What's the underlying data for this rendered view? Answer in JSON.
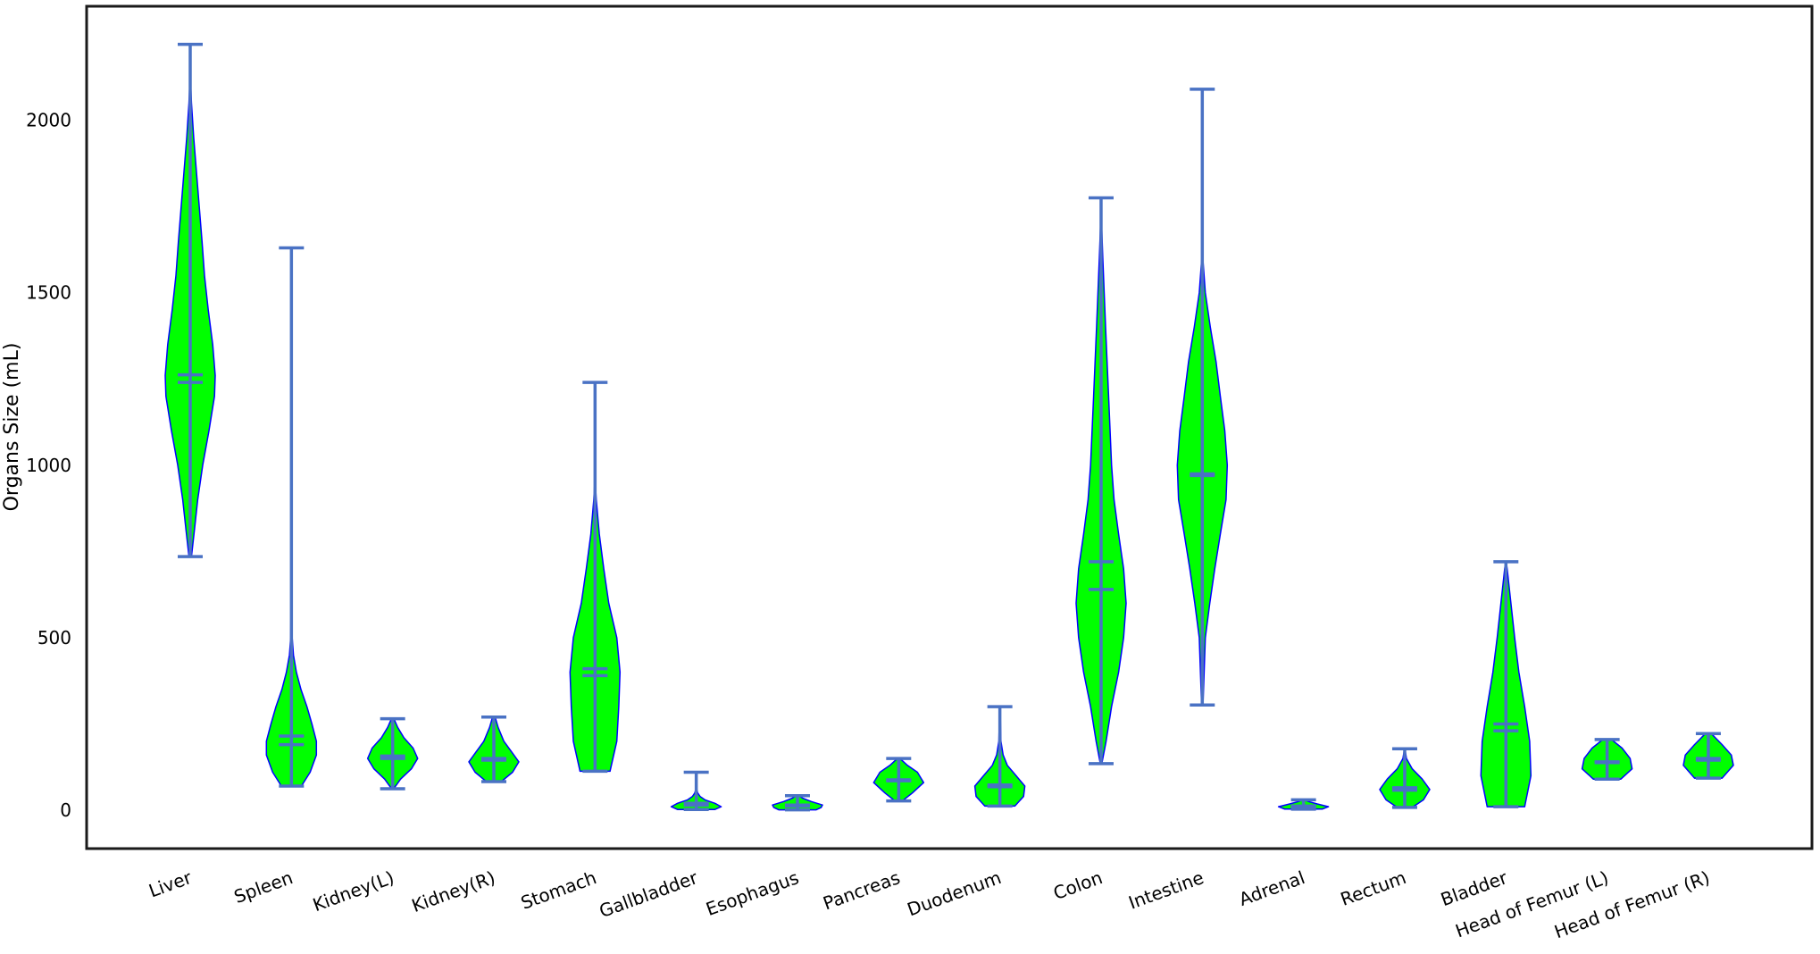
{
  "chart_data": {
    "type": "violin",
    "title": "",
    "xlabel": "",
    "ylabel": "Organs Size (mL)",
    "ylim": [
      -110,
      2340
    ],
    "yticks": [
      0,
      500,
      1000,
      1500,
      2000
    ],
    "grid": false,
    "colors": {
      "fill": "#00ff00",
      "edge": "#0000ff",
      "stats": "#4a72c4",
      "frame": "#1a1a1a"
    },
    "series": [
      {
        "name": "Liver",
        "min": 735,
        "max": 2220,
        "mean": 1262,
        "median": 1240,
        "density": [
          [
            735,
            0.05
          ],
          [
            800,
            0.15
          ],
          [
            900,
            0.3
          ],
          [
            1000,
            0.5
          ],
          [
            1100,
            0.75
          ],
          [
            1200,
            0.97
          ],
          [
            1260,
            1.0
          ],
          [
            1350,
            0.9
          ],
          [
            1450,
            0.72
          ],
          [
            1550,
            0.57
          ],
          [
            1650,
            0.47
          ],
          [
            1750,
            0.36
          ],
          [
            1850,
            0.25
          ],
          [
            1950,
            0.14
          ],
          [
            2050,
            0.05
          ],
          [
            2100,
            0.02
          ],
          [
            2220,
            0.005
          ]
        ]
      },
      {
        "name": "Spleen",
        "min": 70,
        "max": 1630,
        "mean": 215,
        "median": 190,
        "density": [
          [
            70,
            0.4
          ],
          [
            110,
            0.75
          ],
          [
            160,
            1.0
          ],
          [
            200,
            1.0
          ],
          [
            250,
            0.82
          ],
          [
            300,
            0.62
          ],
          [
            350,
            0.38
          ],
          [
            400,
            0.2
          ],
          [
            450,
            0.08
          ],
          [
            500,
            0.03
          ],
          [
            600,
            0.012
          ],
          [
            900,
            0.006
          ],
          [
            1630,
            0.004
          ]
        ]
      },
      {
        "name": "Kidney(L)",
        "min": 62,
        "max": 265,
        "mean": 157,
        "median": 150,
        "density": [
          [
            62,
            0.04
          ],
          [
            90,
            0.32
          ],
          [
            120,
            0.75
          ],
          [
            150,
            1.0
          ],
          [
            180,
            0.82
          ],
          [
            210,
            0.45
          ],
          [
            240,
            0.2
          ],
          [
            265,
            0.05
          ]
        ]
      },
      {
        "name": "Kidney(R)",
        "min": 83,
        "max": 270,
        "mean": 150,
        "median": 145,
        "density": [
          [
            83,
            0.3
          ],
          [
            110,
            0.75
          ],
          [
            140,
            1.0
          ],
          [
            170,
            0.7
          ],
          [
            200,
            0.4
          ],
          [
            240,
            0.17
          ],
          [
            270,
            0.05
          ]
        ]
      },
      {
        "name": "Stomach",
        "min": 113,
        "max": 1240,
        "mean": 410,
        "median": 390,
        "density": [
          [
            113,
            0.6
          ],
          [
            200,
            0.87
          ],
          [
            300,
            0.95
          ],
          [
            400,
            1.0
          ],
          [
            500,
            0.87
          ],
          [
            600,
            0.55
          ],
          [
            700,
            0.35
          ],
          [
            800,
            0.17
          ],
          [
            900,
            0.05
          ],
          [
            950,
            0.01
          ],
          [
            1240,
            0.004
          ]
        ]
      },
      {
        "name": "Gallbladder",
        "min": 2,
        "max": 110,
        "mean": 20,
        "median": 15,
        "density": [
          [
            2,
            0.75
          ],
          [
            10,
            1.0
          ],
          [
            20,
            0.75
          ],
          [
            30,
            0.35
          ],
          [
            40,
            0.15
          ],
          [
            50,
            0.06
          ],
          [
            60,
            0.02
          ],
          [
            110,
            0.005
          ]
        ]
      },
      {
        "name": "Esophagus",
        "min": 1,
        "max": 42,
        "mean": 15,
        "median": 12,
        "density": [
          [
            1,
            0.75
          ],
          [
            8,
            0.95
          ],
          [
            15,
            1.0
          ],
          [
            25,
            0.55
          ],
          [
            35,
            0.2
          ],
          [
            42,
            0.05
          ]
        ]
      },
      {
        "name": "Pancreas",
        "min": 27,
        "max": 150,
        "mean": 88,
        "median": 85,
        "density": [
          [
            27,
            0.15
          ],
          [
            50,
            0.55
          ],
          [
            80,
            1.0
          ],
          [
            110,
            0.75
          ],
          [
            130,
            0.35
          ],
          [
            150,
            0.05
          ]
        ]
      },
      {
        "name": "Duodenum",
        "min": 12,
        "max": 300,
        "mean": 73,
        "median": 68,
        "density": [
          [
            12,
            0.6
          ],
          [
            40,
            0.95
          ],
          [
            70,
            1.0
          ],
          [
            100,
            0.65
          ],
          [
            130,
            0.3
          ],
          [
            160,
            0.13
          ],
          [
            200,
            0.04
          ],
          [
            300,
            0.01
          ]
        ]
      },
      {
        "name": "Colon",
        "min": 135,
        "max": 1775,
        "mean": 720,
        "median": 640,
        "density": [
          [
            135,
            0.03
          ],
          [
            200,
            0.2
          ],
          [
            300,
            0.42
          ],
          [
            400,
            0.7
          ],
          [
            500,
            0.9
          ],
          [
            600,
            1.0
          ],
          [
            700,
            0.9
          ],
          [
            800,
            0.7
          ],
          [
            900,
            0.52
          ],
          [
            1000,
            0.42
          ],
          [
            1200,
            0.3
          ],
          [
            1400,
            0.18
          ],
          [
            1600,
            0.07
          ],
          [
            1700,
            0.02
          ],
          [
            1775,
            0.005
          ]
        ]
      },
      {
        "name": "Intestine",
        "min": 305,
        "max": 2090,
        "mean": 975,
        "median": 970,
        "density": [
          [
            305,
            0.03
          ],
          [
            500,
            0.12
          ],
          [
            600,
            0.3
          ],
          [
            700,
            0.5
          ],
          [
            800,
            0.72
          ],
          [
            900,
            0.95
          ],
          [
            1000,
            1.0
          ],
          [
            1100,
            0.9
          ],
          [
            1200,
            0.72
          ],
          [
            1300,
            0.55
          ],
          [
            1400,
            0.32
          ],
          [
            1500,
            0.12
          ],
          [
            1600,
            0.02
          ],
          [
            2090,
            0.004
          ]
        ]
      },
      {
        "name": "Adrenal",
        "min": 3,
        "max": 30,
        "mean": 12,
        "median": 10,
        "density": [
          [
            3,
            0.75
          ],
          [
            10,
            1.0
          ],
          [
            18,
            0.55
          ],
          [
            25,
            0.2
          ],
          [
            30,
            0.05
          ]
        ]
      },
      {
        "name": "Rectum",
        "min": 8,
        "max": 178,
        "mean": 65,
        "median": 58,
        "density": [
          [
            8,
            0.3
          ],
          [
            30,
            0.75
          ],
          [
            60,
            1.0
          ],
          [
            90,
            0.7
          ],
          [
            120,
            0.3
          ],
          [
            150,
            0.07
          ],
          [
            178,
            0.01
          ]
        ]
      },
      {
        "name": "Bladder",
        "min": 10,
        "max": 720,
        "mean": 250,
        "median": 230,
        "density": [
          [
            10,
            0.75
          ],
          [
            100,
            1.0
          ],
          [
            200,
            0.95
          ],
          [
            300,
            0.75
          ],
          [
            400,
            0.52
          ],
          [
            500,
            0.35
          ],
          [
            600,
            0.2
          ],
          [
            700,
            0.05
          ],
          [
            720,
            0.01
          ]
        ]
      },
      {
        "name": "Head of Femur (L)",
        "min": 90,
        "max": 205,
        "mean": 140,
        "median": 138,
        "density": [
          [
            90,
            0.55
          ],
          [
            120,
            1.0
          ],
          [
            150,
            0.92
          ],
          [
            180,
            0.6
          ],
          [
            205,
            0.17
          ]
        ]
      },
      {
        "name": "Head of Femur (R)",
        "min": 93,
        "max": 222,
        "mean": 150,
        "median": 145,
        "density": [
          [
            93,
            0.55
          ],
          [
            130,
            1.0
          ],
          [
            160,
            0.92
          ],
          [
            190,
            0.55
          ],
          [
            222,
            0.12
          ]
        ]
      }
    ]
  }
}
